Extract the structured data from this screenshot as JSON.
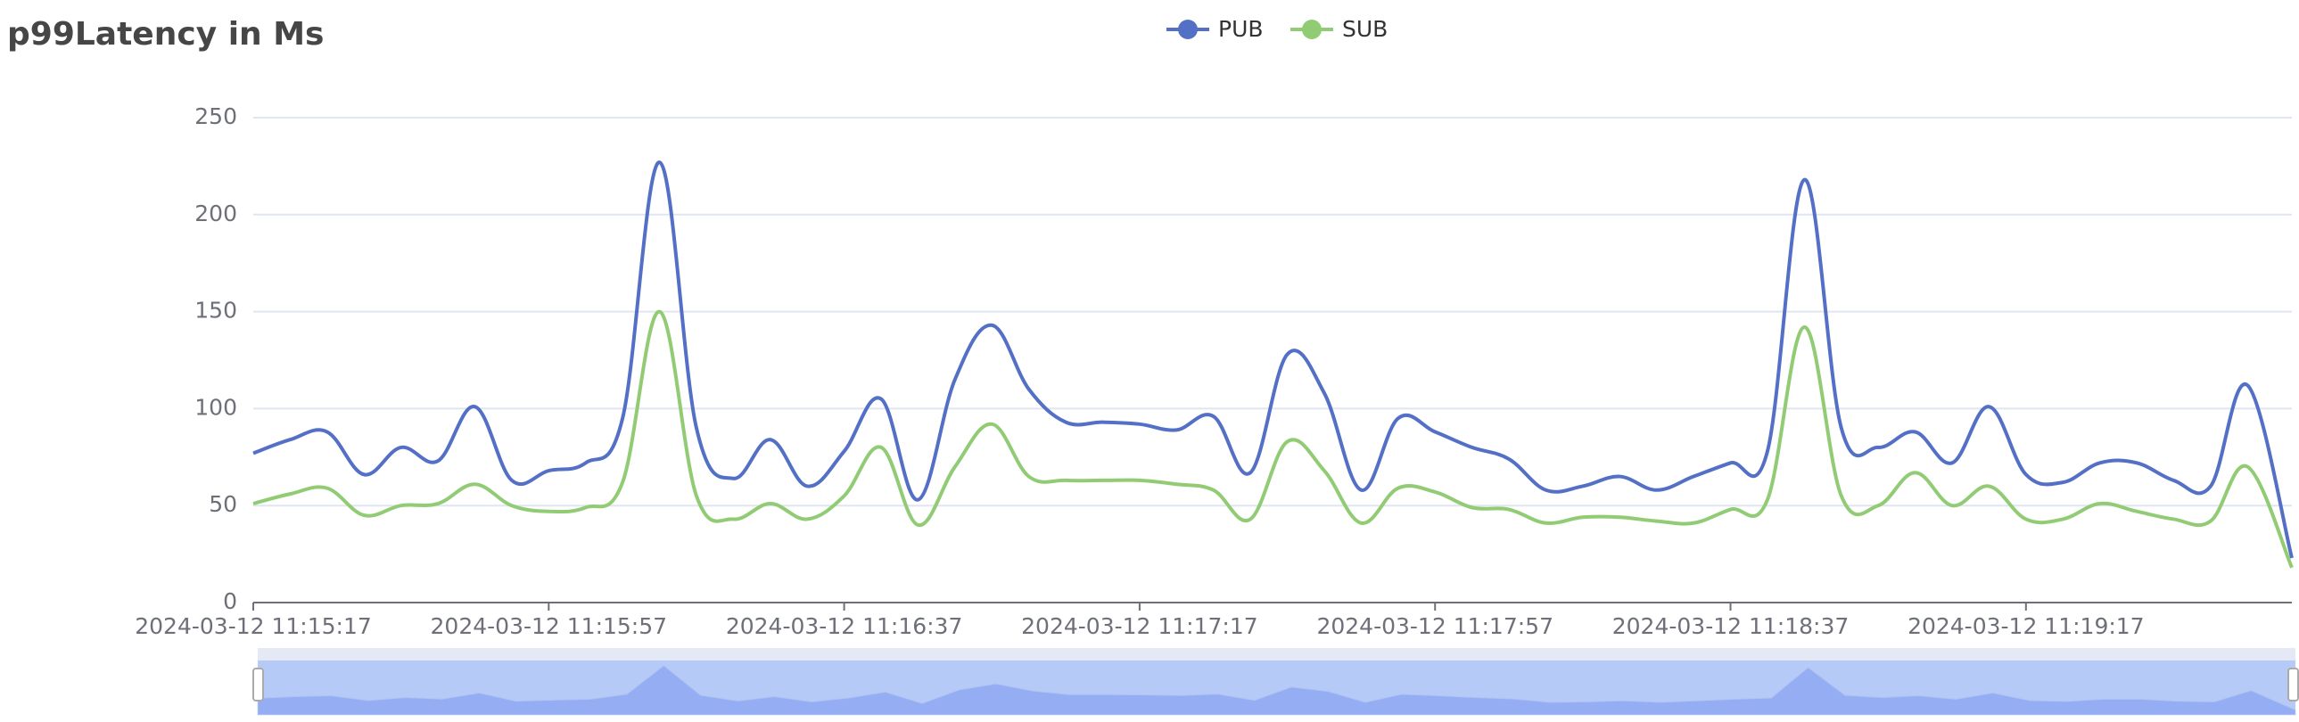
{
  "chart_data": {
    "type": "line",
    "title": "p99Latency in Ms",
    "x": [
      "2024-03-12 11:15:17",
      "2024-03-12 11:15:22",
      "2024-03-12 11:15:27",
      "2024-03-12 11:15:32",
      "2024-03-12 11:15:37",
      "2024-03-12 11:15:42",
      "2024-03-12 11:15:47",
      "2024-03-12 11:15:52",
      "2024-03-12 11:15:57",
      "2024-03-12 11:16:02",
      "2024-03-12 11:16:07",
      "2024-03-12 11:16:12",
      "2024-03-12 11:16:17",
      "2024-03-12 11:16:22",
      "2024-03-12 11:16:27",
      "2024-03-12 11:16:32",
      "2024-03-12 11:16:37",
      "2024-03-12 11:16:42",
      "2024-03-12 11:16:47",
      "2024-03-12 11:16:52",
      "2024-03-12 11:16:57",
      "2024-03-12 11:17:02",
      "2024-03-12 11:17:07",
      "2024-03-12 11:17:12",
      "2024-03-12 11:17:17",
      "2024-03-12 11:17:22",
      "2024-03-12 11:17:27",
      "2024-03-12 11:17:32",
      "2024-03-12 11:17:37",
      "2024-03-12 11:17:42",
      "2024-03-12 11:17:47",
      "2024-03-12 11:17:52",
      "2024-03-12 11:17:57",
      "2024-03-12 11:18:02",
      "2024-03-12 11:18:07",
      "2024-03-12 11:18:12",
      "2024-03-12 11:18:17",
      "2024-03-12 11:18:22",
      "2024-03-12 11:18:27",
      "2024-03-12 11:18:32",
      "2024-03-12 11:18:37",
      "2024-03-12 11:18:42",
      "2024-03-12 11:18:47",
      "2024-03-12 11:18:52",
      "2024-03-12 11:18:57",
      "2024-03-12 11:19:02",
      "2024-03-12 11:19:07",
      "2024-03-12 11:19:12",
      "2024-03-12 11:19:17",
      "2024-03-12 11:19:22",
      "2024-03-12 11:19:27",
      "2024-03-12 11:19:32",
      "2024-03-12 11:19:37",
      "2024-03-12 11:19:42",
      "2024-03-12 11:19:47",
      "2024-03-12 11:19:53"
    ],
    "series": [
      {
        "name": "PUB",
        "color": "#5470c6",
        "values": [
          77,
          84,
          88,
          66,
          80,
          73,
          101,
          63,
          68,
          72,
          95,
          227,
          90,
          64,
          84,
          60,
          78,
          105,
          53,
          115,
          143,
          110,
          93,
          93,
          92,
          89,
          96,
          67,
          128,
          108,
          58,
          95,
          88,
          80,
          74,
          58,
          60,
          65,
          58,
          65,
          72,
          78,
          218,
          90,
          80,
          88,
          72,
          101,
          66,
          62,
          72,
          72,
          63,
          60,
          112,
          23
        ]
      },
      {
        "name": "SUB",
        "color": "#91cc75",
        "values": [
          51,
          56,
          59,
          45,
          50,
          51,
          61,
          50,
          47,
          49,
          62,
          150,
          55,
          43,
          51,
          43,
          55,
          80,
          40,
          70,
          92,
          65,
          63,
          63,
          63,
          61,
          58,
          43,
          83,
          68,
          41,
          59,
          57,
          49,
          48,
          41,
          44,
          44,
          42,
          41,
          48,
          53,
          142,
          55,
          50,
          67,
          50,
          60,
          43,
          43,
          51,
          47,
          43,
          42,
          70,
          18
        ]
      }
    ],
    "xlim": [
      "2024-03-12 11:15:17",
      "2024-03-12 11:19:53"
    ],
    "xticks": [
      "2024-03-12 11:15:17",
      "2024-03-12 11:15:57",
      "2024-03-12 11:16:37",
      "2024-03-12 11:17:17",
      "2024-03-12 11:17:57",
      "2024-03-12 11:18:37",
      "2024-03-12 11:19:17"
    ],
    "ylim": [
      0,
      250
    ],
    "yticks": [
      0,
      50,
      100,
      150,
      200,
      250
    ],
    "grid": true,
    "legend": "top",
    "smooth": true
  }
}
